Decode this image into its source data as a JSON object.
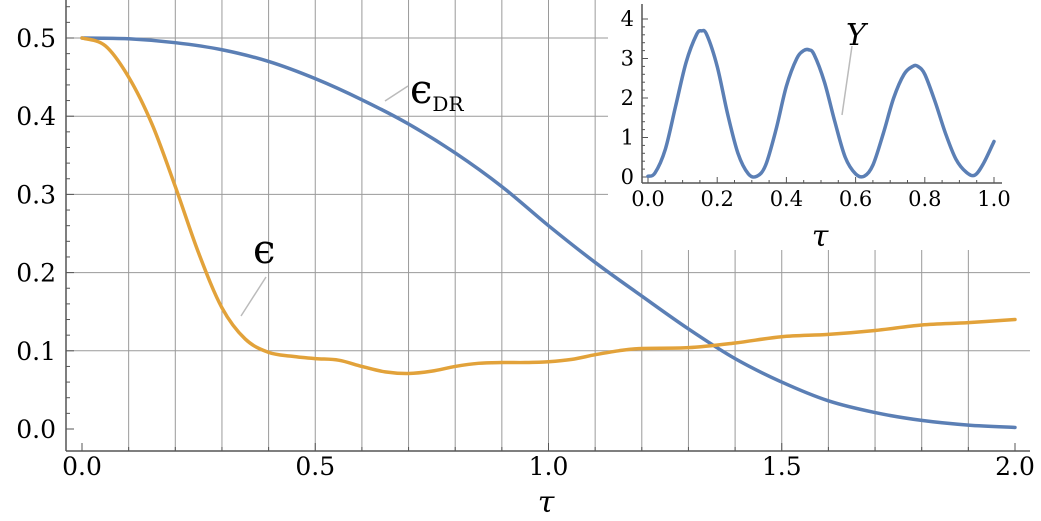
{
  "chart_data": [
    {
      "type": "line",
      "title": "",
      "xlabel": "τ",
      "ylabel": "",
      "xlim": [
        0.0,
        2.0
      ],
      "ylim": [
        0.0,
        0.5
      ],
      "x_ticks": [
        "0.0",
        "0.5",
        "1.0",
        "1.5",
        "2.0"
      ],
      "y_ticks": [
        "0.0",
        "0.1",
        "0.2",
        "0.3",
        "0.4",
        "0.5"
      ],
      "grid": "vertical every 0.1, horizontal every 0.1",
      "series": [
        {
          "name": "ϵ_DR",
          "color": "#5b7fb5",
          "x": [
            0.0,
            0.1,
            0.2,
            0.3,
            0.4,
            0.5,
            0.6,
            0.7,
            0.8,
            0.9,
            1.0,
            1.1,
            1.2,
            1.3,
            1.4,
            1.5,
            1.6,
            1.7,
            1.8,
            1.9,
            2.0
          ],
          "y": [
            0.5,
            0.499,
            0.494,
            0.485,
            0.47,
            0.448,
            0.421,
            0.39,
            0.353,
            0.31,
            0.26,
            0.213,
            0.17,
            0.128,
            0.09,
            0.06,
            0.036,
            0.021,
            0.011,
            0.005,
            0.002
          ]
        },
        {
          "name": "ϵ",
          "color": "#e2a23a",
          "x": [
            0.0,
            0.05,
            0.1,
            0.15,
            0.2,
            0.25,
            0.3,
            0.35,
            0.4,
            0.45,
            0.5,
            0.55,
            0.6,
            0.65,
            0.7,
            0.75,
            0.8,
            0.85,
            0.9,
            0.95,
            1.0,
            1.05,
            1.1,
            1.15,
            1.2,
            1.3,
            1.4,
            1.5,
            1.6,
            1.7,
            1.8,
            1.9,
            2.0
          ],
          "y": [
            0.5,
            0.49,
            0.45,
            0.39,
            0.31,
            0.225,
            0.155,
            0.115,
            0.098,
            0.093,
            0.09,
            0.088,
            0.08,
            0.073,
            0.071,
            0.074,
            0.08,
            0.084,
            0.085,
            0.085,
            0.086,
            0.089,
            0.095,
            0.1,
            0.103,
            0.104,
            0.11,
            0.118,
            0.121,
            0.126,
            0.133,
            0.136,
            0.14
          ]
        }
      ],
      "annotations": [
        {
          "text": "ϵ",
          "subscript": "DR"
        },
        {
          "text": "ϵ",
          "subscript": ""
        }
      ]
    },
    {
      "type": "line",
      "title": "",
      "xlabel": "τ",
      "ylabel": "",
      "xlim": [
        0.0,
        1.0
      ],
      "ylim": [
        0,
        4
      ],
      "x_ticks": [
        "0.0",
        "0.2",
        "0.4",
        "0.6",
        "0.8",
        "1.0"
      ],
      "y_ticks": [
        "0",
        "1",
        "2",
        "3",
        "4"
      ],
      "grid": "off",
      "series": [
        {
          "name": "Y",
          "color": "#5b7fb5",
          "x": [
            0.0,
            0.02,
            0.05,
            0.08,
            0.11,
            0.14,
            0.155,
            0.17,
            0.2,
            0.23,
            0.26,
            0.29,
            0.315,
            0.34,
            0.37,
            0.4,
            0.43,
            0.45,
            0.465,
            0.48,
            0.51,
            0.54,
            0.57,
            0.6,
            0.625,
            0.65,
            0.68,
            0.71,
            0.74,
            0.765,
            0.78,
            0.8,
            0.83,
            0.86,
            0.89,
            0.92,
            0.945,
            0.97,
            1.0
          ],
          "y": [
            0.02,
            0.1,
            0.7,
            1.8,
            2.9,
            3.6,
            3.7,
            3.6,
            2.8,
            1.6,
            0.6,
            0.08,
            0.02,
            0.3,
            1.2,
            2.3,
            3.0,
            3.2,
            3.22,
            3.1,
            2.4,
            1.4,
            0.5,
            0.08,
            0.02,
            0.3,
            1.1,
            2.0,
            2.6,
            2.8,
            2.8,
            2.6,
            1.9,
            1.1,
            0.45,
            0.12,
            0.05,
            0.35,
            0.9
          ]
        }
      ],
      "annotations": [
        {
          "text": "Y"
        }
      ]
    }
  ]
}
